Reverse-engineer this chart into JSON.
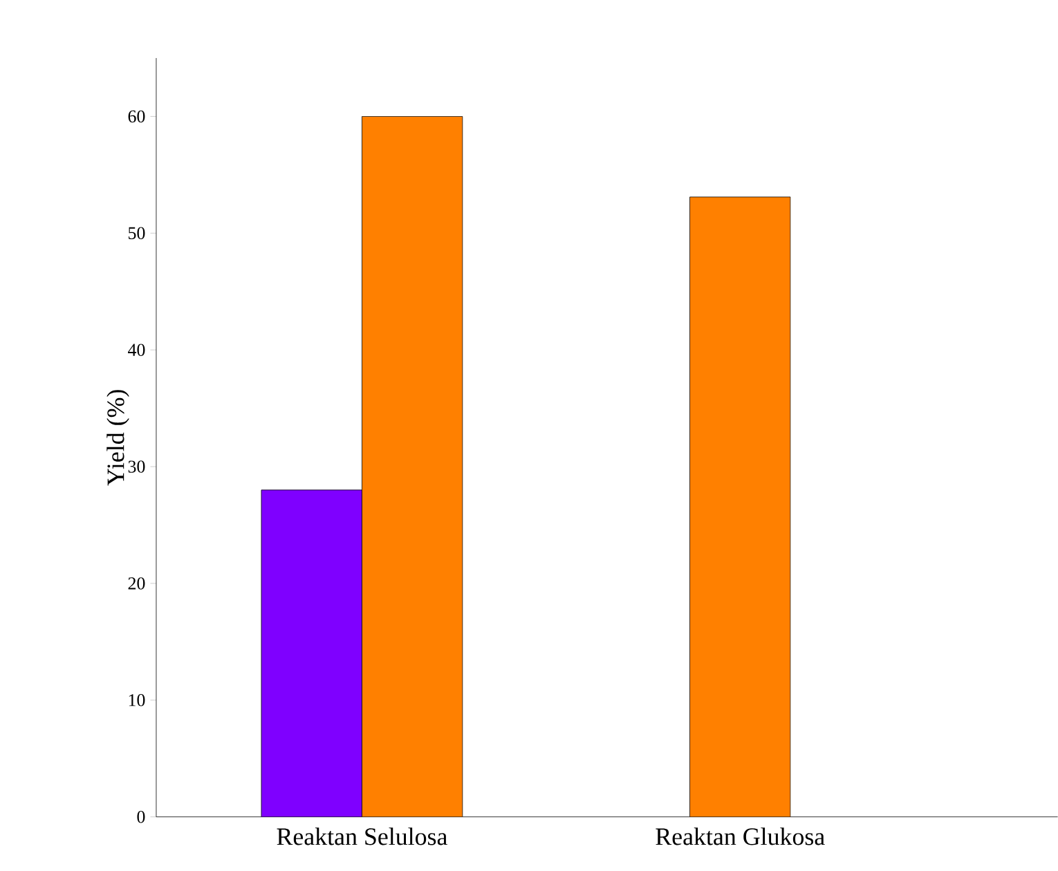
{
  "chart_data": {
    "type": "bar",
    "ylabel": "Yield (%)",
    "categories": [
      "Reaktan Selulosa",
      "Reaktan Glukosa"
    ],
    "series": [
      {
        "color": "#7f00ff",
        "values": [
          28,
          null
        ]
      },
      {
        "color": "#ff8000",
        "values": [
          60,
          53.1
        ]
      }
    ],
    "ylim": [
      0,
      65
    ],
    "yticks": [
      0,
      10,
      20,
      30,
      40,
      50,
      60
    ]
  }
}
